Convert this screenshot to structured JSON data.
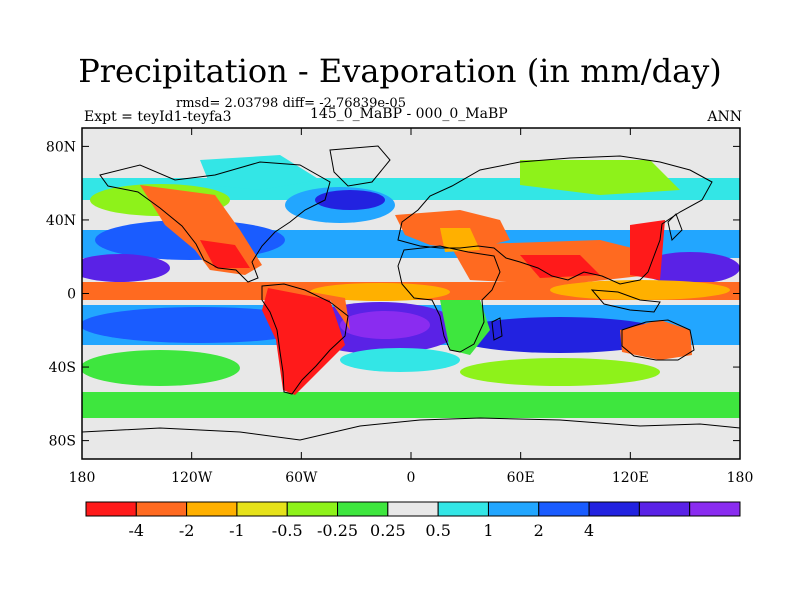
{
  "chart_data": {
    "type": "heatmap",
    "title": "Precipitation - Evaporation (in mm/day)",
    "stats_text": "rmsd= 2.03798 diff= -2.76839e-05",
    "left_label": "Expt = teyId1-teyfa3",
    "center_label": "145_0_MaBP - 000_0_MaBP",
    "right_label": "ANN",
    "x_axis": {
      "range": [
        -180,
        180
      ],
      "ticks": [
        -180,
        -120,
        -60,
        0,
        60,
        120,
        180
      ],
      "tick_labels": [
        "180",
        "120W",
        "60W",
        "0",
        "60E",
        "120E",
        "180"
      ]
    },
    "y_axis": {
      "range": [
        -90,
        90
      ],
      "ticks": [
        80,
        40,
        0,
        -40,
        -80
      ],
      "tick_labels": [
        "80N",
        "40N",
        "0",
        "40S",
        "80S"
      ]
    },
    "colorbar": {
      "labels": [
        "-4",
        "-2",
        "-1",
        "-0.5",
        "-0.25",
        "0.25",
        "0.5",
        "1",
        "2",
        "4"
      ],
      "colors": [
        "#ff1a1a",
        "#ff6a20",
        "#ffb000",
        "#e6e21a",
        "#8ef21a",
        "#3ee63e",
        "#e8e8e8",
        "#33e6e6",
        "#22a6ff",
        "#1a5cff",
        "#2222e0",
        "#5a22e6",
        "#8a2cf0"
      ]
    }
  }
}
